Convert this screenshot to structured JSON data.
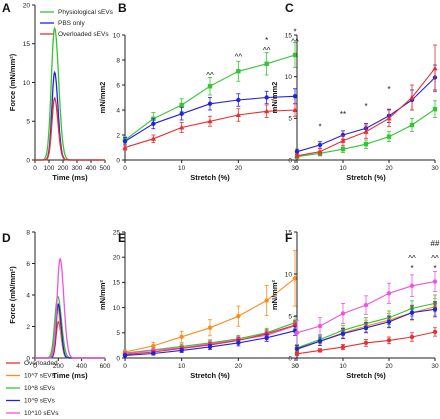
{
  "chart_data": [
    {
      "panel": "A",
      "type": "line",
      "ylabel": "Force (mN/mm²)",
      "xlabel": "Time (ms)",
      "xlim": [
        0,
        500
      ],
      "ylim": [
        0,
        20
      ],
      "xticks": [
        "0",
        "100",
        "200",
        "300",
        "400",
        "500"
      ],
      "yticks": [
        "0",
        "5",
        "10",
        "15",
        "20"
      ],
      "series": [
        {
          "name": "Physiological sEVs",
          "color": "#33c533",
          "peak": 17,
          "peak_time": 140,
          "width": 55
        },
        {
          "name": "PBS only",
          "color": "#2222dd",
          "peak": 11.3,
          "peak_time": 140,
          "width": 45
        },
        {
          "name": "Overloaded sEVs",
          "color": "#e83030",
          "peak": 8,
          "peak_time": 140,
          "width": 45
        }
      ]
    },
    {
      "panel": "B",
      "type": "line",
      "ylabel": "mN/mm2",
      "xlabel": "Stretch (%)",
      "xlim": [
        0,
        30
      ],
      "ylim": [
        0,
        10
      ],
      "xticks": [
        "0",
        "10",
        "20",
        "30"
      ],
      "yticks": [
        "0",
        "2",
        "4",
        "6",
        "8",
        "10"
      ],
      "x": [
        0,
        5,
        10,
        15,
        20,
        25,
        30
      ],
      "series": [
        {
          "name": "Physiological sEVs",
          "color": "#33c533",
          "marker": "square",
          "values": [
            1.6,
            3.3,
            4.4,
            5.9,
            7.1,
            7.7,
            8.4
          ],
          "err": [
            0.3,
            0.5,
            0.5,
            0.7,
            0.8,
            0.9,
            1.0
          ]
        },
        {
          "name": "PBS only",
          "color": "#2222dd",
          "marker": "circle",
          "values": [
            1.5,
            2.9,
            3.7,
            4.5,
            4.8,
            5.0,
            5.1
          ],
          "err": [
            0.3,
            0.4,
            0.5,
            0.5,
            0.5,
            0.5,
            0.6
          ]
        },
        {
          "name": "Overloaded sEVs",
          "color": "#e83030",
          "marker": "triangle",
          "values": [
            1.0,
            1.7,
            2.6,
            3.1,
            3.6,
            3.9,
            4.0
          ],
          "err": [
            0.2,
            0.3,
            0.4,
            0.4,
            0.5,
            0.5,
            0.5
          ]
        }
      ],
      "annotations": [
        {
          "x": 15,
          "text": "^^",
          "y": 6.8
        },
        {
          "x": 20,
          "text": "^^",
          "y": 8.3
        },
        {
          "x": 25,
          "text": "^^",
          "y": 8.8
        },
        {
          "x": 25,
          "text": "*",
          "y": 9.6
        },
        {
          "x": 30,
          "text": "^^",
          "y": 9.5
        },
        {
          "x": 30,
          "text": "*",
          "y": 10.3
        }
      ]
    },
    {
      "panel": "C",
      "type": "line",
      "ylabel": "mN/mm2",
      "xlabel": "Stretch (%)",
      "xlim": [
        0,
        30
      ],
      "ylim": [
        0,
        15
      ],
      "xticks": [
        "0",
        "10",
        "20",
        "30"
      ],
      "yticks": [
        "0",
        "5",
        "10",
        "15"
      ],
      "x": [
        0,
        5,
        10,
        15,
        20,
        25,
        30
      ],
      "series": [
        {
          "name": "Physiological sEVs",
          "color": "#33c533",
          "marker": "square",
          "values": [
            0.4,
            0.8,
            1.3,
            1.9,
            2.8,
            4.2,
            6.1
          ],
          "err": [
            0.2,
            0.3,
            0.4,
            0.5,
            0.6,
            0.8,
            1.0
          ]
        },
        {
          "name": "PBS only",
          "color": "#2222dd",
          "marker": "circle",
          "values": [
            1.0,
            1.8,
            3.0,
            3.8,
            5.3,
            7.2,
            9.9
          ],
          "err": [
            0.3,
            0.4,
            0.5,
            0.6,
            0.8,
            1.2,
            1.5
          ]
        },
        {
          "name": "Overloaded sEVs",
          "color": "#e83030",
          "marker": "triangle",
          "values": [
            0.5,
            1.0,
            2.3,
            3.4,
            5.0,
            7.5,
            11.0
          ],
          "err": [
            0.2,
            0.4,
            0.6,
            0.8,
            1.0,
            1.5,
            2.8
          ]
        }
      ],
      "annotations": [
        {
          "x": 5,
          "text": "*",
          "y": 4.0
        },
        {
          "x": 10,
          "text": "**",
          "y": 5.5
        },
        {
          "x": 15,
          "text": "*",
          "y": 6.5
        },
        {
          "x": 20,
          "text": "*",
          "y": 8.5
        }
      ]
    },
    {
      "panel": "D",
      "type": "line",
      "ylabel": "Force (mN/mm²)",
      "xlabel": "Time (ms)",
      "xlim": [
        0,
        600
      ],
      "ylim": [
        0,
        8
      ],
      "xticks": [
        "0",
        "200",
        "400",
        "600"
      ],
      "yticks": [
        "0",
        "2",
        "4",
        "6",
        "8"
      ],
      "series": [
        {
          "name": "Overloaded",
          "color": "#e83030",
          "peak": 2.3,
          "peak_time": 200,
          "width": 45
        },
        {
          "name": "10^7 sEVs",
          "color": "#ff8c1a",
          "peak": 3.4,
          "peak_time": 190,
          "width": 50
        },
        {
          "name": "10^8 sEVs",
          "color": "#33c533",
          "peak": 3.9,
          "peak_time": 195,
          "width": 60
        },
        {
          "name": "10^9 sEVs",
          "color": "#2222dd",
          "peak": 3.4,
          "peak_time": 200,
          "width": 45
        },
        {
          "name": "10^10 sEVs",
          "color": "#ee55dd",
          "peak": 6.3,
          "peak_time": 215,
          "width": 60
        }
      ]
    },
    {
      "panel": "E",
      "type": "line",
      "ylabel": "mN/mm²",
      "xlabel": "Stretch (%)",
      "xlim": [
        0,
        30
      ],
      "ylim": [
        0,
        25
      ],
      "xticks": [
        "0",
        "10",
        "20",
        "30"
      ],
      "yticks": [
        "0",
        "5",
        "10",
        "15",
        "20",
        "25"
      ],
      "x": [
        0,
        5,
        10,
        15,
        20,
        25,
        30
      ],
      "series": [
        {
          "name": "10^7 sEVs",
          "color": "#ff8c1a",
          "marker": "circle",
          "values": [
            1.2,
            2.4,
            4.2,
            6.0,
            8.3,
            11.4,
            15.8
          ],
          "err": [
            0.4,
            0.7,
            1.1,
            1.6,
            2.0,
            3.0,
            5.5
          ]
        },
        {
          "name": "10^8 sEVs",
          "color": "#33c533",
          "marker": "circle",
          "values": [
            1.0,
            1.6,
            2.3,
            3.0,
            3.8,
            5.0,
            7.0
          ],
          "err": [
            0.3,
            0.4,
            0.5,
            0.6,
            0.7,
            0.9,
            1.2
          ]
        },
        {
          "name": "10^10 sEVs",
          "color": "#ee55dd",
          "marker": "circle",
          "values": [
            0.9,
            1.5,
            2.0,
            2.8,
            3.6,
            4.5,
            6.4
          ],
          "err": [
            0.3,
            0.4,
            0.5,
            0.6,
            0.7,
            0.9,
            1.1
          ]
        },
        {
          "name": "Overloaded",
          "color": "#e83030",
          "marker": "circle",
          "values": [
            0.7,
            1.2,
            1.9,
            2.6,
            3.5,
            4.8,
            6.5
          ],
          "err": [
            0.2,
            0.3,
            0.4,
            0.5,
            0.6,
            0.8,
            1.0
          ]
        },
        {
          "name": "10^9 sEVs",
          "color": "#2222dd",
          "marker": "circle",
          "values": [
            0.5,
            0.9,
            1.5,
            2.2,
            3.0,
            4.0,
            5.4
          ],
          "err": [
            0.2,
            0.3,
            0.4,
            0.5,
            0.6,
            0.7,
            0.9
          ]
        }
      ]
    },
    {
      "panel": "F",
      "type": "line",
      "ylabel": "mN/mm²",
      "xlabel": "Stretch (%)",
      "xlim": [
        0,
        30
      ],
      "ylim": [
        0,
        15
      ],
      "xticks": [
        "0",
        "10",
        "20",
        "30"
      ],
      "yticks": [
        "0",
        "5",
        "10",
        "15"
      ],
      "x": [
        0,
        5,
        10,
        15,
        20,
        25,
        30
      ],
      "series": [
        {
          "name": "10^10 sEVs",
          "color": "#ee55dd",
          "marker": "circle",
          "values": [
            3.0,
            3.8,
            5.3,
            6.3,
            7.7,
            8.6,
            9.1
          ],
          "err": [
            1.5,
            1.0,
            1.2,
            1.1,
            1.2,
            1.3,
            1.2
          ]
        },
        {
          "name": "10^8 sEVs",
          "color": "#33c533",
          "marker": "circle",
          "values": [
            1.2,
            2.2,
            3.3,
            4.1,
            4.8,
            5.9,
            6.5
          ],
          "err": [
            0.4,
            0.5,
            0.6,
            0.7,
            0.8,
            0.9,
            1.0
          ]
        },
        {
          "name": "10^7 sEVs",
          "color": "#ff8c1a",
          "marker": "circle",
          "values": [
            1.0,
            2.0,
            3.0,
            3.8,
            4.5,
            5.4,
            6.1
          ],
          "err": [
            0.4,
            0.5,
            0.6,
            0.7,
            0.8,
            0.9,
            1.0
          ]
        },
        {
          "name": "10^9 sEVs",
          "color": "#2222dd",
          "marker": "circle",
          "values": [
            1.1,
            2.0,
            2.9,
            3.6,
            4.3,
            5.4,
            5.8
          ],
          "err": [
            0.4,
            0.5,
            0.6,
            0.6,
            0.7,
            0.8,
            0.9
          ]
        },
        {
          "name": "Overloaded",
          "color": "#e83030",
          "marker": "circle",
          "values": [
            0.5,
            0.9,
            1.3,
            1.8,
            2.1,
            2.5,
            3.1
          ],
          "err": [
            0.2,
            0.2,
            0.3,
            0.4,
            0.4,
            0.5,
            0.5
          ]
        }
      ],
      "annotations": [
        {
          "x": 25,
          "text": "*",
          "y": 10.7
        },
        {
          "x": 25,
          "text": "^^",
          "y": 11.9
        },
        {
          "x": 30,
          "text": "*",
          "y": 10.7
        },
        {
          "x": 30,
          "text": "^^",
          "y": 11.9
        },
        {
          "x": 30,
          "text": "##",
          "y": 13.7
        }
      ]
    }
  ]
}
